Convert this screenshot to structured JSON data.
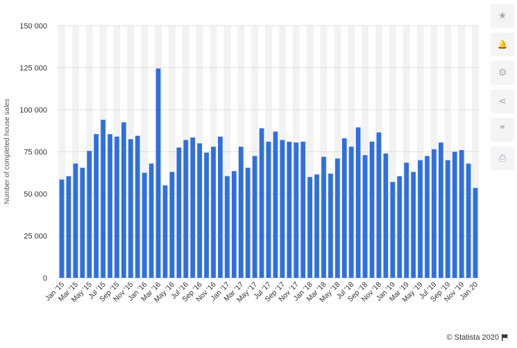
{
  "chart_data": {
    "type": "bar",
    "ylabel": "Number of completed house sales",
    "ylim": [
      0,
      150000
    ],
    "yticks": [
      0,
      25000,
      50000,
      75000,
      100000,
      125000,
      150000
    ],
    "ytick_labels": [
      "0",
      "25 000",
      "50 000",
      "75 000",
      "100 000",
      "125 000",
      "150 000"
    ],
    "grid": "horizontal dotted",
    "bar_color": "#2f6fdf",
    "band_color": "#f2f2f2",
    "categories": [
      "Jan '15",
      "Feb '15",
      "Mar '15",
      "Apr '15",
      "May '15",
      "Jun '15",
      "Jul '15",
      "Aug '15",
      "Sep '15",
      "Oct '15",
      "Nov '15",
      "Dec '15",
      "Jan '16",
      "Feb '16",
      "Mar '16",
      "Apr '16",
      "May '16",
      "Jun '16",
      "Jul '16",
      "Aug '16",
      "Sep '16",
      "Oct '16",
      "Nov '16",
      "Dec '16",
      "Jan '17",
      "Feb '17",
      "Mar '17",
      "Apr '17",
      "May '17",
      "Jun '17",
      "Jul '17",
      "Aug '17",
      "Sep '17",
      "Oct '17",
      "Nov '17",
      "Dec '17",
      "Jan '18",
      "Feb '18",
      "Mar '18",
      "Apr '18",
      "May '18",
      "Jun '18",
      "Jul '18",
      "Aug '18",
      "Sep '18",
      "Oct '18",
      "Nov '18",
      "Dec '18",
      "Jan '19",
      "Feb '19",
      "Mar '19",
      "Apr '19",
      "May '19",
      "Jun '19",
      "Jul '19",
      "Aug '19",
      "Sep '19",
      "Oct '19",
      "Nov '19",
      "Dec '19",
      "Jan '20"
    ],
    "values": [
      58500,
      60500,
      68000,
      65500,
      75500,
      85500,
      94000,
      85500,
      84000,
      92500,
      82500,
      84500,
      62500,
      68000,
      124500,
      55000,
      63000,
      77500,
      82000,
      83500,
      80000,
      74500,
      78000,
      84000,
      60500,
      63500,
      78000,
      65500,
      72500,
      89000,
      81000,
      87000,
      82000,
      81000,
      80500,
      81000,
      60000,
      61500,
      72000,
      62000,
      71000,
      83000,
      78000,
      89500,
      73000,
      81000,
      86500,
      74000,
      57000,
      60500,
      68500,
      63000,
      70000,
      72500,
      76500,
      80500,
      70000,
      75000,
      76000,
      68000,
      53500
    ],
    "x_tick_labels": [
      "Jan '15",
      "Mar '15",
      "May '15",
      "Jul '15",
      "Sep '15",
      "Nov '15",
      "Jan '16",
      "Mar '16",
      "May '16",
      "Jul '16",
      "Sep '16",
      "Nov '16",
      "Jan '17",
      "Mar '17",
      "May '17",
      "Jul '17",
      "Sep '17",
      "Nov '17",
      "Jan '18",
      "Mar '18",
      "May '18",
      "Jul '18",
      "Sep '18",
      "Nov '18",
      "Jan '19",
      "Mar '19",
      "May '19",
      "Jul '19",
      "Sep '19",
      "Nov '19",
      "Jan 20"
    ]
  },
  "toolbar": {
    "icons": [
      "star-icon",
      "bell-icon",
      "gear-icon",
      "share-icon",
      "quote-icon",
      "print-icon"
    ],
    "glyphs": [
      "★",
      "🔔",
      "⚙",
      "⋖",
      "❞",
      "⎙"
    ]
  },
  "credit": {
    "text": "© Statista 2020"
  }
}
